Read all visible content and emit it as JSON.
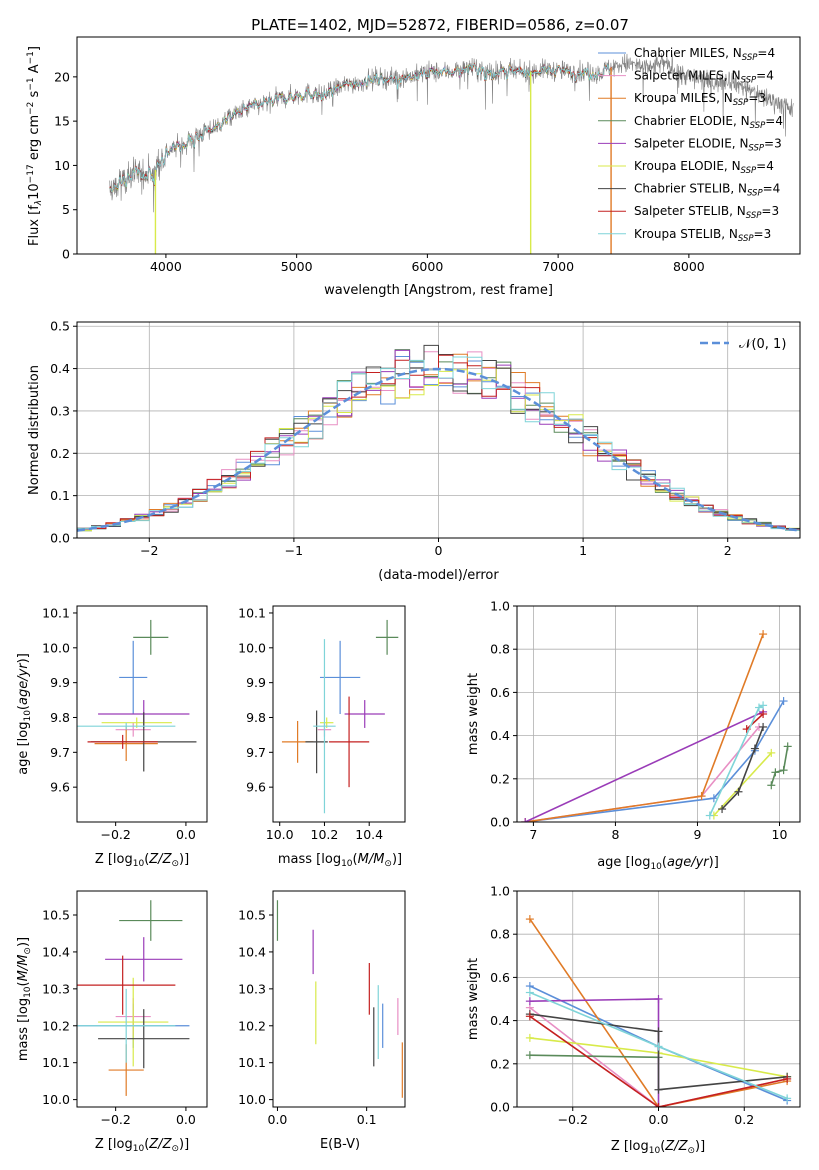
{
  "figure": {
    "title": "PLATE=1402, MJD=52872, FIBERID=0586, z=0.07"
  },
  "colors": {
    "Chabrier MILES": "#5b8fd9",
    "Salpeter MILES": "#e88fc4",
    "Kroupa MILES": "#e07b27",
    "Chabrier ELODIE": "#5a8a5a",
    "Salpeter ELODIE": "#9a3cb8",
    "Kroupa ELODIE": "#d8ea4a",
    "Chabrier STELIB": "#444444",
    "Salpeter STELIB": "#c42020",
    "Kroupa STELIB": "#7fd4d8",
    "data": "#808080",
    "gauss": "#5b8fd9"
  },
  "chart_data": [
    {
      "id": "spectrum",
      "type": "line",
      "title": "",
      "xlabel": "wavelength [Angstrom, rest frame]",
      "ylabel_parts": [
        "Flux [f",
        "λ",
        "10",
        "−17",
        " erg cm",
        "−2",
        " s",
        "−1",
        " A",
        "−1",
        "]"
      ],
      "xlim": [
        3320,
        8850
      ],
      "ylim": [
        0,
        24.5
      ],
      "xticks": [
        "4000",
        "5000",
        "6000",
        "7000",
        "8000"
      ],
      "xtick_values": [
        4000,
        5000,
        6000,
        7000,
        8000
      ],
      "yticks": [
        "0",
        "5",
        "10",
        "15",
        "20"
      ],
      "ytick_values": [
        0,
        5,
        10,
        15,
        20
      ],
      "legend_position": "upper-right",
      "legend": [
        {
          "model": "Chabrier MILES",
          "n": "4"
        },
        {
          "model": "Salpeter MILES",
          "n": "4"
        },
        {
          "model": "Kroupa MILES",
          "n": "3"
        },
        {
          "model": "Chabrier ELODIE",
          "n": "4"
        },
        {
          "model": "Salpeter ELODIE",
          "n": "3"
        },
        {
          "model": "Kroupa ELODIE",
          "n": "4"
        },
        {
          "model": "Chabrier STELIB",
          "n": "4"
        },
        {
          "model": "Salpeter STELIB",
          "n": "3"
        },
        {
          "model": "Kroupa STELIB",
          "n": "3"
        }
      ],
      "legend_label_prefix": "N",
      "legend_label_sub": "SSP",
      "continuum": [
        [
          3570,
          7.2
        ],
        [
          3700,
          8.5
        ],
        [
          3800,
          9.4
        ],
        [
          3900,
          8.8
        ],
        [
          3950,
          10.5
        ],
        [
          4000,
          11.5
        ],
        [
          4100,
          12.2
        ],
        [
          4200,
          13.0
        ],
        [
          4300,
          13.8
        ],
        [
          4400,
          14.5
        ],
        [
          4500,
          15.5
        ],
        [
          4600,
          16.3
        ],
        [
          4700,
          16.8
        ],
        [
          4800,
          17.2
        ],
        [
          4900,
          17.6
        ],
        [
          5000,
          17.9
        ],
        [
          5100,
          18.2
        ],
        [
          5200,
          17.8
        ],
        [
          5300,
          18.7
        ],
        [
          5400,
          19.2
        ],
        [
          5500,
          19.4
        ],
        [
          5600,
          19.9
        ],
        [
          5700,
          19.8
        ],
        [
          5800,
          20.0
        ],
        [
          5900,
          20.1
        ],
        [
          6000,
          20.6
        ],
        [
          6100,
          20.5
        ],
        [
          6200,
          20.7
        ],
        [
          6300,
          21.0
        ],
        [
          6400,
          20.8
        ],
        [
          6500,
          20.6
        ],
        [
          6600,
          20.6
        ],
        [
          6700,
          20.5
        ],
        [
          6800,
          20.6
        ],
        [
          6900,
          20.8
        ],
        [
          7000,
          20.7
        ],
        [
          7100,
          20.6
        ],
        [
          7200,
          20.5
        ],
        [
          7300,
          20.4
        ],
        [
          7400,
          21.0
        ],
        [
          7500,
          21.5
        ],
        [
          7600,
          21.3
        ],
        [
          7700,
          20.9
        ],
        [
          7800,
          21.6
        ],
        [
          7900,
          20.8
        ],
        [
          8000,
          20.0
        ],
        [
          8100,
          19.7
        ],
        [
          8200,
          19.3
        ],
        [
          8300,
          19.8
        ],
        [
          8400,
          19.0
        ],
        [
          8500,
          18.3
        ],
        [
          8600,
          17.6
        ],
        [
          8700,
          17.0
        ],
        [
          8800,
          16.2
        ]
      ],
      "model_end": 7410,
      "spikes": [
        {
          "x": 3920,
          "y": 0
        },
        {
          "x": 6790,
          "y": 0
        },
        {
          "x": 7405,
          "y": 0
        }
      ]
    },
    {
      "id": "residuals",
      "type": "histogram",
      "title": "",
      "xlabel": "(data-model)/error",
      "ylabel": "Normed distribution",
      "xlim": [
        -2.5,
        2.5
      ],
      "ylim": [
        0,
        0.51
      ],
      "xticks": [
        "−2",
        "−1",
        "0",
        "1",
        "2"
      ],
      "xtick_values": [
        -2,
        -1,
        0,
        1,
        2
      ],
      "yticks": [
        "0.0",
        "0.1",
        "0.2",
        "0.3",
        "0.4",
        "0.5"
      ],
      "ytick_values": [
        0,
        0.1,
        0.2,
        0.3,
        0.4,
        0.5
      ],
      "grid": true,
      "legend": "𝒩(0, 1)",
      "legend_position": "upper-right",
      "bin_width": 0.1
    },
    {
      "id": "age-vs-Z",
      "type": "scatter",
      "xlabel": "Z [log10(Z/Z⊙)]",
      "ylabel": "age  [log10(age/yr)]",
      "xlim": [
        -0.31,
        0.06
      ],
      "ylim": [
        9.5,
        10.12
      ],
      "xticks": [
        "−0.2",
        "0.0"
      ],
      "xtick_values": [
        -0.2,
        0.0
      ],
      "yticks": [
        "9.6",
        "9.7",
        "9.8",
        "9.9",
        "10.0",
        "10.1"
      ],
      "ytick_values": [
        9.6,
        9.7,
        9.8,
        9.9,
        10.0,
        10.1
      ],
      "points": [
        {
          "model": "Chabrier MILES",
          "x": -0.15,
          "y": 9.915,
          "ex": 0.04,
          "ey": 0.105
        },
        {
          "model": "Salpeter MILES",
          "x": -0.15,
          "y": 9.765,
          "ex": 0.05,
          "ey": 0.02
        },
        {
          "model": "Kroupa MILES",
          "x": -0.17,
          "y": 9.725,
          "ex": 0.09,
          "ey": 0.05
        },
        {
          "model": "Chabrier ELODIE",
          "x": -0.1,
          "y": 10.03,
          "ex": 0.05,
          "ey": 0.05
        },
        {
          "model": "Salpeter ELODIE",
          "x": -0.12,
          "y": 9.81,
          "ex": 0.13,
          "ey": 0.04
        },
        {
          "model": "Kroupa ELODIE",
          "x": -0.14,
          "y": 9.785,
          "ex": 0.1,
          "ey": 0.015
        },
        {
          "model": "Chabrier STELIB",
          "x": -0.12,
          "y": 9.73,
          "ex": 0.15,
          "ey": 0.085
        },
        {
          "model": "Salpeter STELIB",
          "x": -0.18,
          "y": 9.73,
          "ex": 0.1,
          "ey": 0.02
        },
        {
          "model": "Kroupa STELIB",
          "x": -0.17,
          "y": 9.775,
          "ex": 0.14,
          "ey": 0.01
        }
      ]
    },
    {
      "id": "age-vs-mass",
      "type": "scatter",
      "xlabel": "mass [log10(M/M⊙)]",
      "xlim": [
        9.97,
        10.56
      ],
      "ylim": [
        9.5,
        10.12
      ],
      "xticks": [
        "10.0",
        "10.2",
        "10.4"
      ],
      "xtick_values": [
        10.0,
        10.2,
        10.4
      ],
      "yticks": [
        "9.6",
        "9.7",
        "9.8",
        "9.9",
        "10.0",
        "10.1"
      ],
      "ytick_values": [
        9.6,
        9.7,
        9.8,
        9.9,
        10.0,
        10.1
      ],
      "points": [
        {
          "model": "Chabrier MILES",
          "x": 10.27,
          "y": 9.915,
          "ex": 0.09,
          "ey": 0.105
        },
        {
          "model": "Salpeter MILES",
          "x": 10.2,
          "y": 9.765,
          "ex": 0.03,
          "ey": 0.02
        },
        {
          "model": "Kroupa MILES",
          "x": 10.08,
          "y": 9.73,
          "ex": 0.07,
          "ey": 0.06
        },
        {
          "model": "Chabrier ELODIE",
          "x": 10.48,
          "y": 10.03,
          "ex": 0.05,
          "ey": 0.05
        },
        {
          "model": "Salpeter ELODIE",
          "x": 10.38,
          "y": 9.81,
          "ex": 0.09,
          "ey": 0.04
        },
        {
          "model": "Kroupa ELODIE",
          "x": 10.21,
          "y": 9.785,
          "ex": 0.03,
          "ey": 0.015
        },
        {
          "model": "Chabrier STELIB",
          "x": 10.165,
          "y": 9.73,
          "ex": 0.05,
          "ey": 0.09
        },
        {
          "model": "Salpeter STELIB",
          "x": 10.31,
          "y": 9.73,
          "ex": 0.09,
          "ey": 0.13
        },
        {
          "model": "Kroupa STELIB",
          "x": 10.2,
          "y": 9.775,
          "ex": 0.05,
          "ey": 0.25
        }
      ]
    },
    {
      "id": "weight-vs-age",
      "type": "line",
      "xlabel": "age  [log10(age/yr)]",
      "ylabel": "mass weight",
      "xlim": [
        6.8,
        10.25
      ],
      "ylim": [
        0,
        1.0
      ],
      "xticks": [
        "7",
        "8",
        "9",
        "10"
      ],
      "xtick_values": [
        7,
        8,
        9,
        10
      ],
      "yticks": [
        "0.0",
        "0.2",
        "0.4",
        "0.6",
        "0.8",
        "1.0"
      ],
      "ytick_values": [
        0,
        0.2,
        0.4,
        0.6,
        0.8,
        1.0
      ],
      "grid": true,
      "series": [
        {
          "model": "Chabrier MILES",
          "x": [
            6.9,
            9.2,
            9.7,
            10.05
          ],
          "y": [
            0.0,
            0.11,
            0.33,
            0.56
          ]
        },
        {
          "model": "Salpeter MILES",
          "x": [
            6.9,
            9.05,
            9.75
          ],
          "y": [
            0.0,
            0.12,
            0.44
          ]
        },
        {
          "model": "Kroupa MILES",
          "x": [
            6.9,
            9.05,
            9.8
          ],
          "y": [
            0.0,
            0.12,
            0.87
          ]
        },
        {
          "model": "Chabrier ELODIE",
          "x": [
            9.9,
            9.95,
            10.05,
            10.1
          ],
          "y": [
            0.17,
            0.23,
            0.24,
            0.35
          ]
        },
        {
          "model": "Salpeter ELODIE",
          "x": [
            9.8,
            6.9
          ],
          "y": [
            0.51,
            0.0
          ]
        },
        {
          "model": "Kroupa ELODIE",
          "x": [
            9.2,
            9.9
          ],
          "y": [
            0.03,
            0.32
          ]
        },
        {
          "model": "Chabrier STELIB",
          "x": [
            9.3,
            9.5,
            9.7,
            9.8
          ],
          "y": [
            0.06,
            0.14,
            0.34,
            0.44
          ]
        },
        {
          "model": "Salpeter STELIB",
          "x": [
            9.6,
            9.8
          ],
          "y": [
            0.43,
            0.5
          ]
        },
        {
          "model": "Kroupa STELIB",
          "x": [
            9.15,
            9.75,
            9.8
          ],
          "y": [
            0.03,
            0.53,
            0.54
          ]
        }
      ]
    },
    {
      "id": "mass-vs-Z",
      "type": "scatter",
      "xlabel": "Z [log10(Z/Z⊙)]",
      "ylabel": "mass [log10(M/M⊙)]",
      "xlim": [
        -0.31,
        0.06
      ],
      "ylim": [
        9.98,
        10.565
      ],
      "xticks": [
        "−0.2",
        "0.0"
      ],
      "xtick_values": [
        -0.2,
        0.0
      ],
      "yticks": [
        "10.0",
        "10.1",
        "10.2",
        "10.3",
        "10.4",
        "10.5"
      ],
      "ytick_values": [
        10.0,
        10.1,
        10.2,
        10.3,
        10.4,
        10.5
      ],
      "points": [
        {
          "model": "Chabrier MILES",
          "x": -0.15,
          "y": 10.2,
          "ex": 0.16,
          "ey": 0.06
        },
        {
          "model": "Salpeter MILES",
          "x": -0.15,
          "y": 10.225,
          "ex": 0.05,
          "ey": 0.05
        },
        {
          "model": "Kroupa MILES",
          "x": -0.17,
          "y": 10.08,
          "ex": 0.05,
          "ey": 0.07
        },
        {
          "model": "Chabrier ELODIE",
          "x": -0.1,
          "y": 10.485,
          "ex": 0.09,
          "ey": 0.055
        },
        {
          "model": "Salpeter ELODIE",
          "x": -0.12,
          "y": 10.38,
          "ex": 0.11,
          "ey": 0.06
        },
        {
          "model": "Kroupa ELODIE",
          "x": -0.15,
          "y": 10.21,
          "ex": 0.1,
          "ey": 0.12
        },
        {
          "model": "Chabrier STELIB",
          "x": -0.12,
          "y": 10.165,
          "ex": 0.13,
          "ey": 0.08
        },
        {
          "model": "Salpeter STELIB",
          "x": -0.18,
          "y": 10.31,
          "ex": 0.15,
          "ey": 0.08
        },
        {
          "model": "Kroupa STELIB",
          "x": -0.17,
          "y": 10.2,
          "ex": 0.14,
          "ey": 0.1
        }
      ]
    },
    {
      "id": "mass-vs-ebv",
      "type": "scatter",
      "xlabel": "E(B-V)",
      "xlim": [
        -0.005,
        0.143
      ],
      "ylim": [
        9.98,
        10.565
      ],
      "xticks": [
        "0.0",
        "0.1"
      ],
      "xtick_values": [
        0.0,
        0.1
      ],
      "yticks": [
        "10.0",
        "10.1",
        "10.2",
        "10.3",
        "10.4",
        "10.5"
      ],
      "ytick_values": [
        10.0,
        10.1,
        10.2,
        10.3,
        10.4,
        10.5
      ],
      "points": [
        {
          "model": "Chabrier MILES",
          "x": 0.118,
          "y": 10.2,
          "ex": 0.0,
          "ey": 0.06
        },
        {
          "model": "Salpeter MILES",
          "x": 0.135,
          "y": 10.225,
          "ex": 0.0,
          "ey": 0.05
        },
        {
          "model": "Kroupa MILES",
          "x": 0.14,
          "y": 10.08,
          "ex": 0.0,
          "ey": 0.075
        },
        {
          "model": "Chabrier ELODIE",
          "x": 0.0,
          "y": 10.485,
          "ex": 0.0,
          "ey": 0.055
        },
        {
          "model": "Salpeter ELODIE",
          "x": 0.04,
          "y": 10.4,
          "ex": 0.0,
          "ey": 0.06
        },
        {
          "model": "Kroupa ELODIE",
          "x": 0.043,
          "y": 10.235,
          "ex": 0.0,
          "ey": 0.085
        },
        {
          "model": "Chabrier STELIB",
          "x": 0.108,
          "y": 10.17,
          "ex": 0.0,
          "ey": 0.08
        },
        {
          "model": "Salpeter STELIB",
          "x": 0.103,
          "y": 10.3,
          "ex": 0.0,
          "ey": 0.07
        },
        {
          "model": "Kroupa STELIB",
          "x": 0.113,
          "y": 10.21,
          "ex": 0.0,
          "ey": 0.1
        }
      ]
    },
    {
      "id": "weight-vs-Z",
      "type": "line",
      "xlabel": "Z [log10(Z/Z⊙)]",
      "ylabel": "mass weight",
      "xlim": [
        -0.33,
        0.33
      ],
      "ylim": [
        0,
        1.0
      ],
      "xticks": [
        "−0.2",
        "0.0",
        "0.2"
      ],
      "xtick_values": [
        -0.2,
        0.0,
        0.2
      ],
      "yticks": [
        "0.0",
        "0.2",
        "0.4",
        "0.6",
        "0.8",
        "1.0"
      ],
      "ytick_values": [
        0,
        0.2,
        0.4,
        0.6,
        0.8,
        1.0
      ],
      "grid": true,
      "series": [
        {
          "model": "Chabrier MILES",
          "x": [
            -0.3,
            0.0,
            0.3
          ],
          "y": [
            0.56,
            0.28,
            0.03
          ]
        },
        {
          "model": "Salpeter MILES",
          "x": [
            -0.3,
            0.0,
            0.3
          ],
          "y": [
            0.46,
            0.0,
            0.13
          ]
        },
        {
          "model": "Kroupa MILES",
          "x": [
            -0.3,
            0.0,
            0.3
          ],
          "y": [
            0.87,
            0.0,
            0.12
          ]
        },
        {
          "model": "Chabrier ELODIE",
          "x": [
            -0.3,
            0.0
          ],
          "y": [
            0.24,
            0.23
          ]
        },
        {
          "model": "Salpeter ELODIE",
          "x": [
            -0.3,
            0.0,
            0.0
          ],
          "y": [
            0.49,
            0.5,
            0.0
          ]
        },
        {
          "model": "Kroupa ELODIE",
          "x": [
            -0.3,
            0.0,
            0.3
          ],
          "y": [
            0.32,
            0.25,
            0.14
          ]
        },
        {
          "model": "Chabrier STELIB",
          "x": [
            -0.3,
            0.0,
            0.0,
            0.3
          ],
          "y": [
            0.43,
            0.35,
            0.08,
            0.14
          ]
        },
        {
          "model": "Salpeter STELIB",
          "x": [
            -0.3,
            0.0,
            0.3
          ],
          "y": [
            0.42,
            0.0,
            0.13
          ]
        },
        {
          "model": "Kroupa STELIB",
          "x": [
            -0.3,
            0.0,
            0.3
          ],
          "y": [
            0.53,
            0.28,
            0.04
          ]
        }
      ]
    }
  ]
}
